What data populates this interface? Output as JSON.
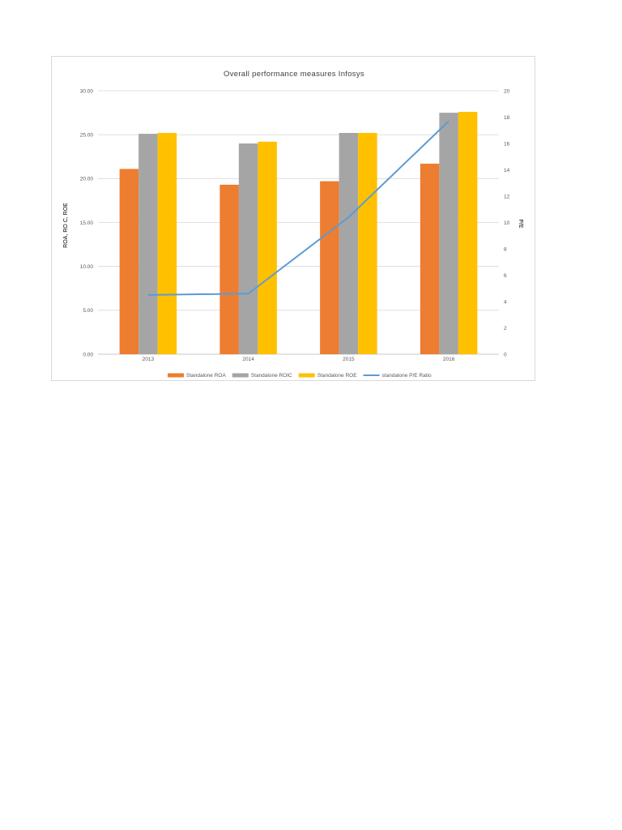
{
  "chart_data": {
    "type": "bar",
    "title": "Overall performance measures Infosys",
    "categories": [
      "2013",
      "2014",
      "2015",
      "2016"
    ],
    "ylabel": "ROA, RO C, ROE",
    "y2label": "P/E",
    "ylim": [
      0,
      30
    ],
    "y2lim": [
      0,
      20
    ],
    "yticks": [
      "0.00",
      "5.00",
      "10.00",
      "15.00",
      "20.00",
      "25.00",
      "30.00"
    ],
    "y2ticks": [
      "0",
      "2",
      "4",
      "6",
      "8",
      "10",
      "12",
      "14",
      "16",
      "18",
      "20"
    ],
    "grid": true,
    "legend_position": "bottom",
    "series": [
      {
        "name": "Standalone ROA",
        "type": "bar",
        "axis": "left",
        "color": "#ED7D31",
        "values": [
          21.1,
          19.3,
          19.7,
          21.7
        ]
      },
      {
        "name": "Standalone ROIC",
        "type": "bar",
        "axis": "left",
        "color": "#A5A5A5",
        "values": [
          25.1,
          24.0,
          25.2,
          27.5
        ]
      },
      {
        "name": "Standalone ROE",
        "type": "bar",
        "axis": "left",
        "color": "#FFC000",
        "values": [
          25.2,
          24.2,
          25.2,
          27.6
        ]
      },
      {
        "name": "standalone P/E Ratio",
        "type": "line",
        "axis": "right",
        "color": "#5B9BD5",
        "values": [
          4.5,
          4.6,
          10.4,
          17.7
        ]
      }
    ]
  }
}
